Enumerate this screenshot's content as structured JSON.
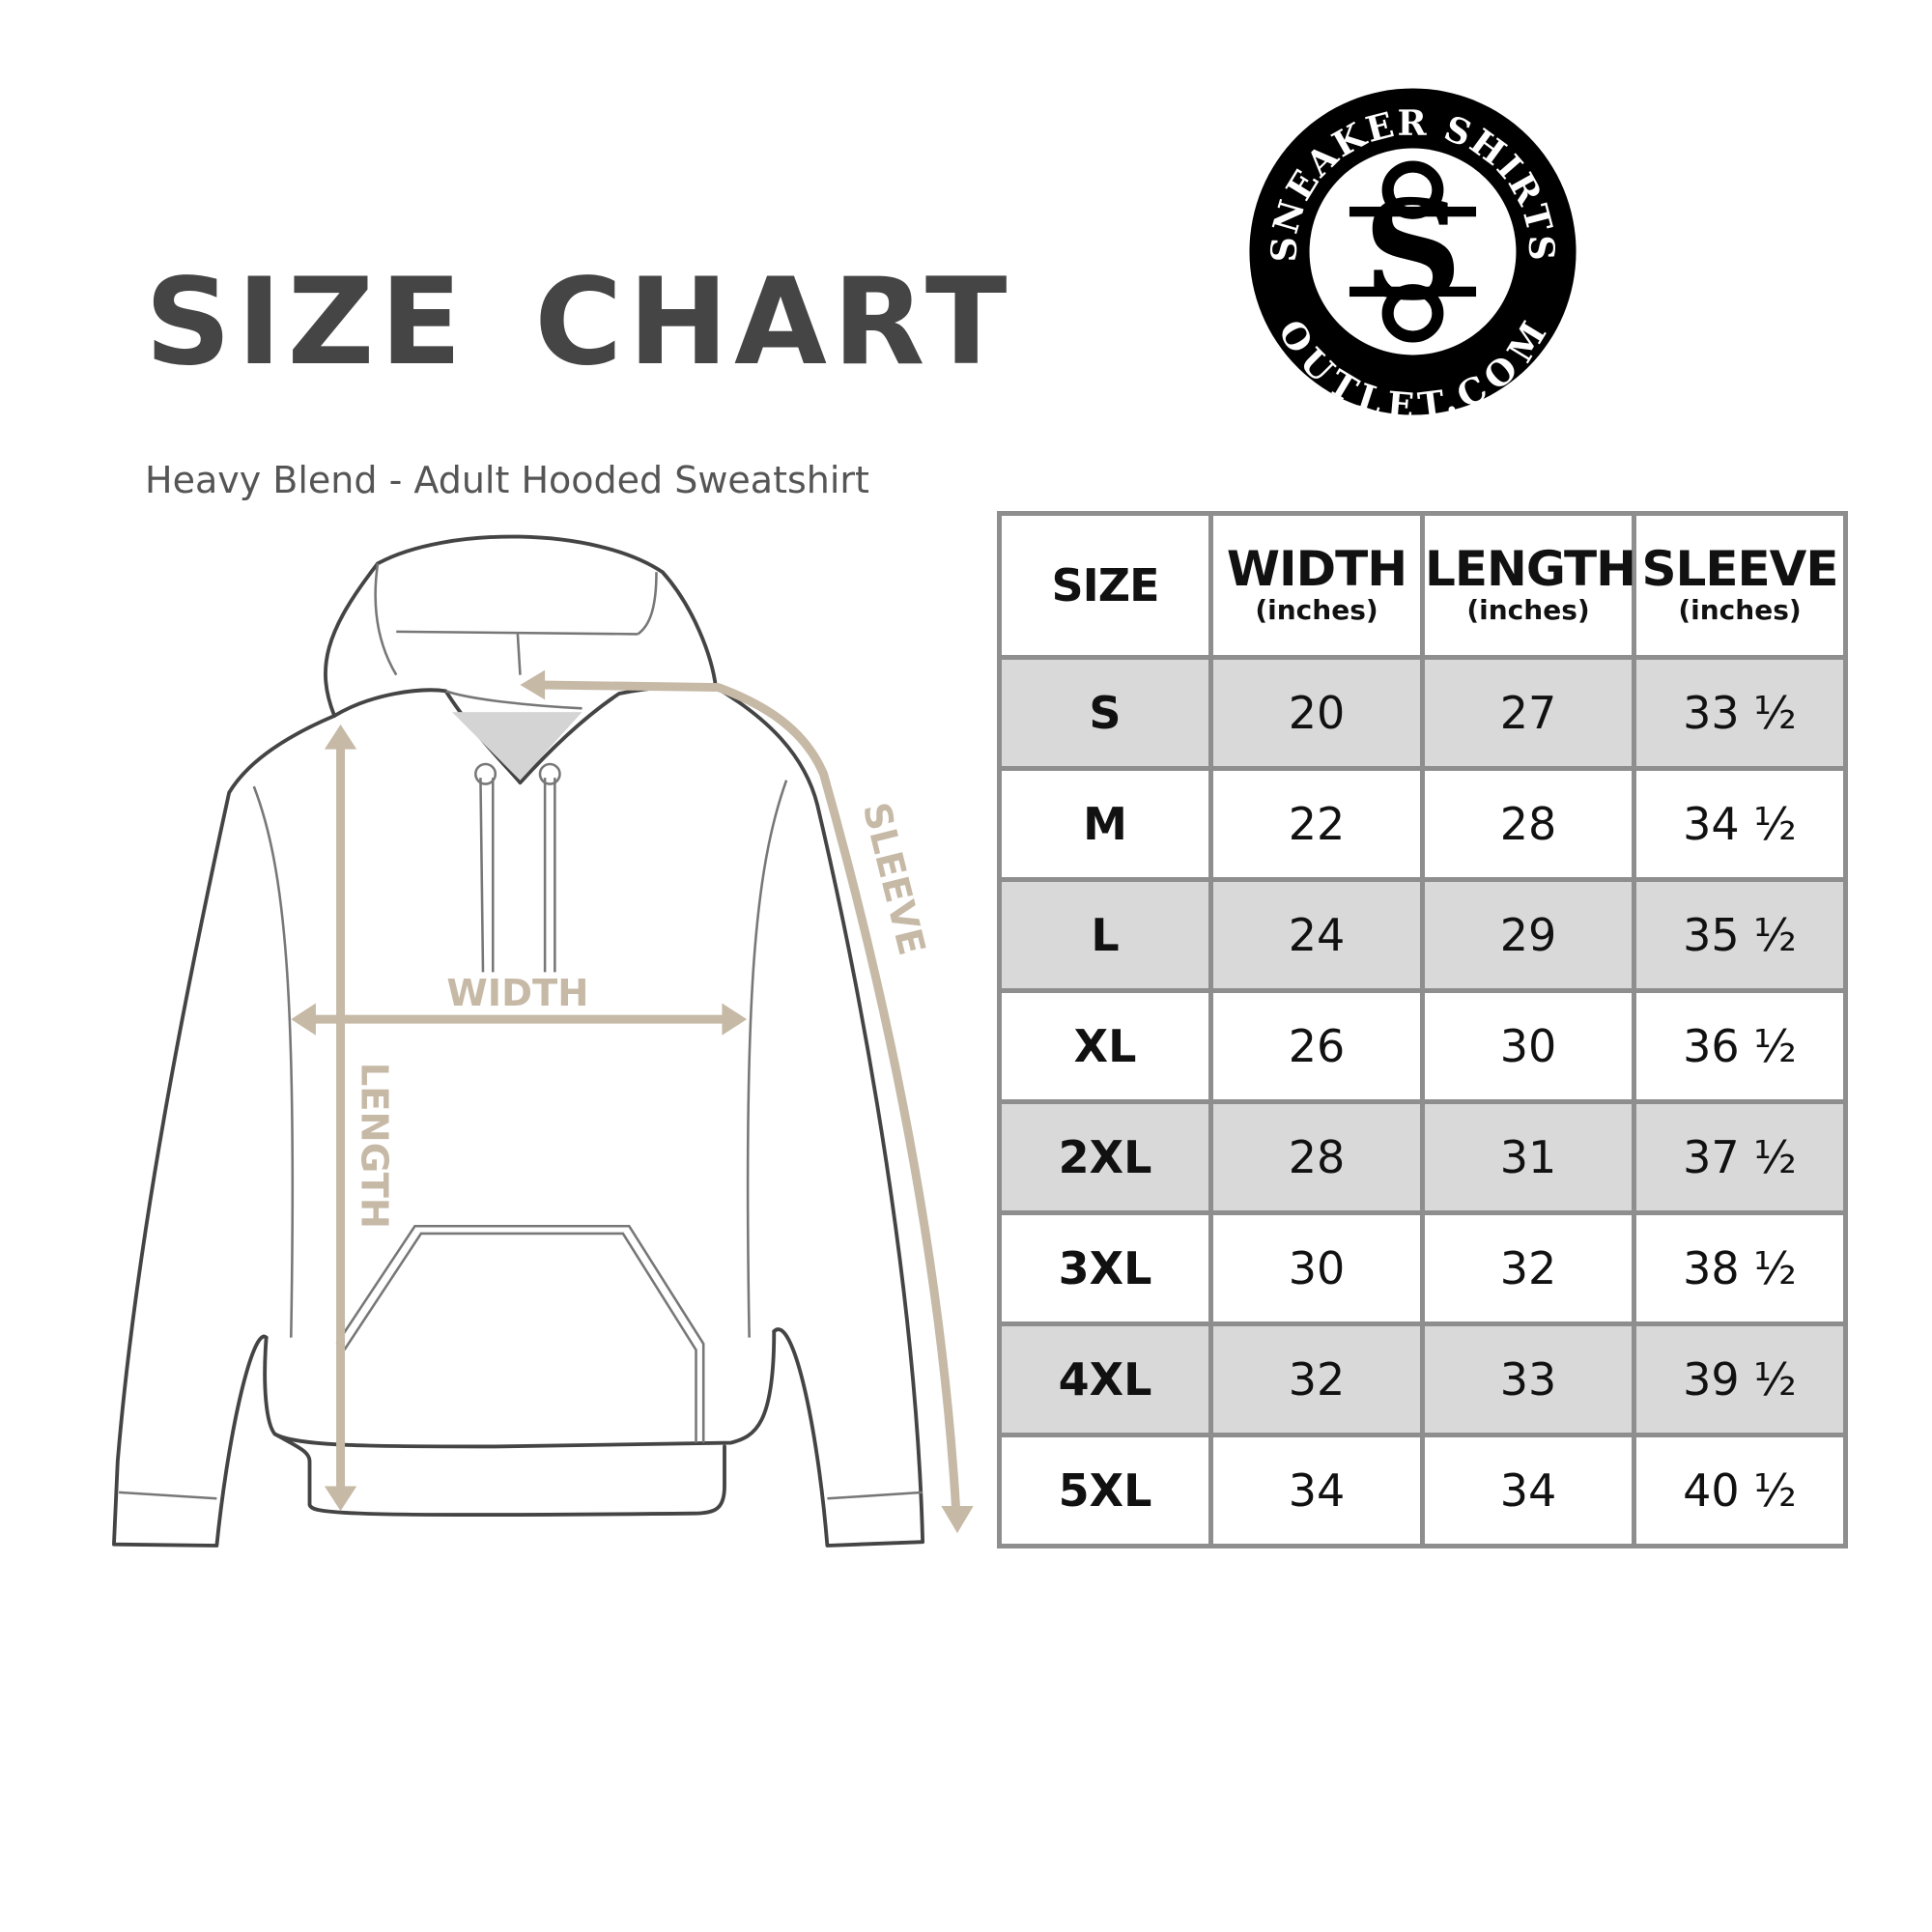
{
  "title": "SIZE CHART",
  "subtitle": "Heavy Blend - Adult Hooded Sweatshirt",
  "logo": {
    "text_top": "SNEAKER SHIRTS",
    "text_bottom": "OUTLET.COM",
    "monogram": "SS"
  },
  "diagram": {
    "width_label": "WIDTH",
    "length_label": "LENGTH",
    "sleeve_label": "SLEEVE",
    "arrow_color": "#c6b9a6",
    "outline_color": "#444444"
  },
  "table": {
    "headers": [
      {
        "label": "SIZE",
        "unit": ""
      },
      {
        "label": "WIDTH",
        "unit": "(inches)"
      },
      {
        "label": "LENGTH",
        "unit": "(inches)"
      },
      {
        "label": "SLEEVE",
        "unit": "(inches)"
      }
    ],
    "rows": [
      [
        "S",
        "20",
        "27",
        "33 ½"
      ],
      [
        "M",
        "22",
        "28",
        "34 ½"
      ],
      [
        "L",
        "24",
        "29",
        "35 ½"
      ],
      [
        "XL",
        "26",
        "30",
        "36 ½"
      ],
      [
        "2XL",
        "28",
        "31",
        "37 ½"
      ],
      [
        "3XL",
        "30",
        "32",
        "38 ½"
      ],
      [
        "4XL",
        "32",
        "33",
        "39 ½"
      ],
      [
        "5XL",
        "34",
        "34",
        "40 ½"
      ]
    ],
    "shade_color": "#d9d9d9",
    "border_color": "#8e8e8e"
  }
}
